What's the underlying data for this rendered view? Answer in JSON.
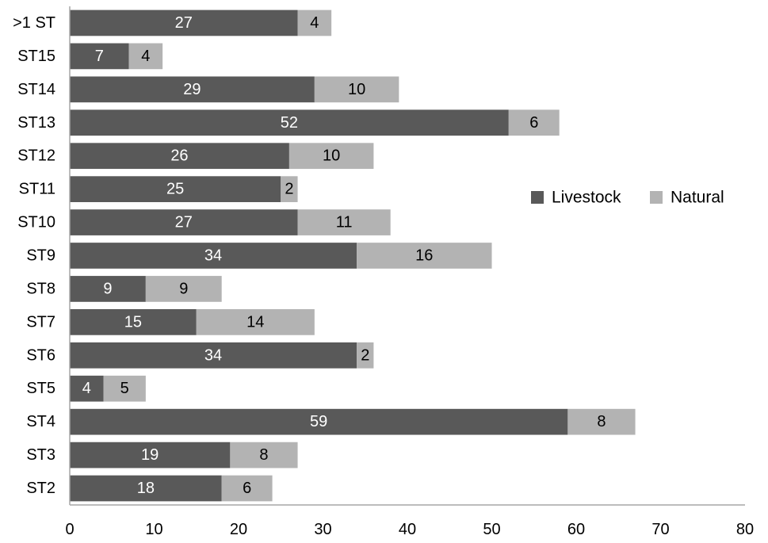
{
  "chart_data": {
    "type": "bar",
    "orientation": "horizontal",
    "stacked": true,
    "categories": [
      ">1 ST",
      "ST15",
      "ST14",
      "ST13",
      "ST12",
      "ST11",
      "ST10",
      "ST9",
      "ST8",
      "ST7",
      "ST6",
      "ST5",
      "ST4",
      "ST3",
      "ST2"
    ],
    "series": [
      {
        "name": "Livestock",
        "color": "#595959",
        "label_color": "#ffffff",
        "values": [
          27,
          7,
          29,
          52,
          26,
          25,
          27,
          34,
          9,
          15,
          34,
          4,
          59,
          19,
          18
        ]
      },
      {
        "name": "Natural",
        "color": "#b3b3b3",
        "label_color": "#000000",
        "values": [
          4,
          4,
          10,
          6,
          10,
          2,
          11,
          16,
          9,
          14,
          2,
          5,
          8,
          8,
          6
        ]
      }
    ],
    "xlim": [
      0,
      80
    ],
    "xticks": [
      "0",
      "10",
      "20",
      "30",
      "40",
      "50",
      "60",
      "70",
      "80"
    ],
    "grid": false,
    "legend_position": "right"
  }
}
